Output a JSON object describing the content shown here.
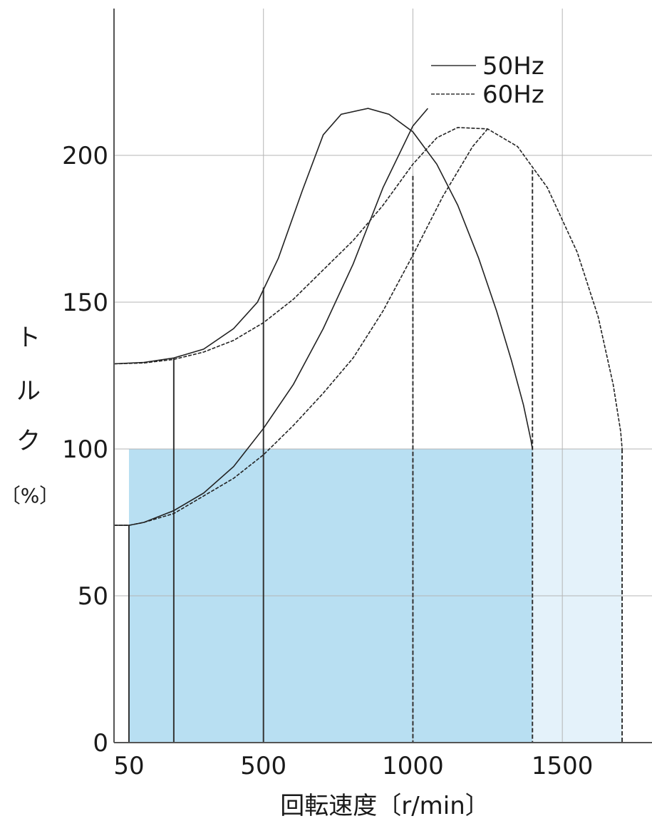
{
  "chart_data": {
    "type": "line",
    "xlabel": "回転速度〔r/min〕",
    "ylabel_chars": [
      "ト",
      "ル",
      "ク"
    ],
    "ylabel_unit": "〔%〕",
    "xlim": [
      0,
      1800
    ],
    "ylim": [
      0,
      250
    ],
    "x_ticks": [
      50,
      500,
      1000,
      1500
    ],
    "x_tick_labels": [
      "50",
      "500",
      "1000",
      "1500"
    ],
    "y_ticks": [
      0,
      50,
      100,
      150,
      200
    ],
    "y_tick_labels": [
      "0",
      "50",
      "100",
      "150",
      "200"
    ],
    "grid": true,
    "legend": {
      "placement": "top-right",
      "entries": [
        {
          "label": "50Hz",
          "style": "solid"
        },
        {
          "label": "60Hz",
          "style": "dashed"
        }
      ]
    },
    "shaded_regions": [
      {
        "name": "rated-torque-50hz",
        "x_start": 50,
        "x_end": 1400,
        "y_top": 100,
        "color": "#b8dff2"
      },
      {
        "name": "rated-torque-60hz",
        "x_start": 1400,
        "x_end": 1700,
        "y_top": 100,
        "color": "#e4f2fa"
      }
    ],
    "series": [
      {
        "hz": "50Hz",
        "style": "solid",
        "x": [
          0,
          100,
          200,
          300,
          400,
          480,
          550,
          630,
          700,
          760,
          850,
          920,
          1000,
          1080,
          1150,
          1220,
          1280,
          1330,
          1370,
          1395,
          1400
        ],
        "y": [
          129,
          129.5,
          131,
          134,
          141,
          150,
          165,
          188,
          207,
          214,
          216,
          214,
          208,
          197,
          183,
          165,
          147,
          130,
          115,
          103,
          100
        ]
      },
      {
        "hz": "60Hz",
        "style": "dashed",
        "x": [
          0,
          100,
          200,
          300,
          400,
          500,
          600,
          700,
          800,
          900,
          1000,
          1080,
          1150,
          1250,
          1350,
          1450,
          1550,
          1620,
          1670,
          1695,
          1700
        ],
        "y": [
          129,
          129.3,
          130.5,
          133,
          137,
          143,
          151,
          161,
          171,
          183,
          197,
          206,
          209.5,
          209,
          203,
          189,
          167,
          145,
          122,
          106,
          100
        ]
      },
      {
        "hz": "50Hz",
        "style": "solid",
        "x": [
          0,
          50,
          100,
          200,
          300,
          400,
          500,
          600,
          700,
          800,
          900,
          1000,
          1050
        ],
        "y": [
          74,
          74,
          75,
          79,
          85,
          94,
          107,
          122,
          141,
          163,
          189,
          210,
          216
        ]
      },
      {
        "hz": "60Hz",
        "style": "dashed",
        "x": [
          0,
          50,
          100,
          200,
          300,
          400,
          500,
          600,
          700,
          800,
          900,
          1000,
          1100,
          1200,
          1250
        ],
        "y": [
          74,
          74,
          75,
          78,
          84,
          90,
          98,
          108,
          119,
          131,
          147,
          166,
          186,
          203,
          209
        ]
      }
    ],
    "drop_lines": [
      {
        "x": 200,
        "y_top": 131,
        "style": "solid"
      },
      {
        "x": 500,
        "y_top": 155,
        "style": "solid"
      },
      {
        "x": 1000,
        "y_top": 193,
        "style": "dashed"
      },
      {
        "x": 1400,
        "y_top": 195,
        "style": "dashed"
      },
      {
        "x": 1700,
        "y_top": 100,
        "style": "dashed"
      },
      {
        "x": 50,
        "y_top": 74,
        "style": "solid"
      }
    ]
  }
}
